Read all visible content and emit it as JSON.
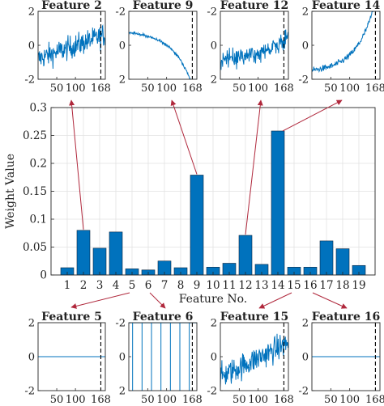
{
  "chart_data": [
    {
      "type": "bar",
      "xlabel": "Feature No.",
      "ylabel": "Weight Value",
      "categories": [
        "1",
        "2",
        "3",
        "4",
        "5",
        "6",
        "7",
        "8",
        "9",
        "10",
        "11",
        "12",
        "13",
        "14",
        "15",
        "16",
        "17",
        "18",
        "19"
      ],
      "values": [
        0.013,
        0.08,
        0.048,
        0.077,
        0.011,
        0.009,
        0.025,
        0.013,
        0.179,
        0.014,
        0.021,
        0.071,
        0.019,
        0.258,
        0.014,
        0.014,
        0.061,
        0.047,
        0.017
      ],
      "ylim": [
        0,
        0.3
      ],
      "yticks": [
        "0",
        "0.05",
        "0.1",
        "0.15",
        "0.2",
        "0.25",
        "0.3"
      ],
      "grid": true,
      "bar_color": "#0072BD"
    },
    {
      "type": "line",
      "title": "Feature 2",
      "ylim": [
        -2,
        2
      ],
      "yticks": [
        "2",
        "0",
        "-2"
      ],
      "xticks": [
        "50",
        "100",
        "168"
      ],
      "marker_x": 168,
      "pattern": "noisy_rise_weak"
    },
    {
      "type": "line",
      "title": "Feature 9",
      "ylim": [
        -2,
        2
      ],
      "yticks": [
        "-2",
        "0",
        "2"
      ],
      "xticks": [
        "50",
        "100",
        "168"
      ],
      "marker_x": 168,
      "pattern": "smooth_exp_rise"
    },
    {
      "type": "line",
      "title": "Feature 12",
      "ylim": [
        -2,
        2
      ],
      "yticks": [
        "-2",
        "0",
        "2"
      ],
      "xticks": [
        "50",
        "100",
        "168"
      ],
      "marker_x": 168,
      "pattern": "noisy_fall"
    },
    {
      "type": "line",
      "title": "Feature 14",
      "ylim": [
        -2,
        2
      ],
      "yticks": [
        "2",
        "0",
        "-2"
      ],
      "xticks": [
        "50",
        "100",
        "168"
      ],
      "marker_x": 168,
      "pattern": "noisy_exp_rise"
    },
    {
      "type": "line",
      "title": "Feature 5",
      "ylim": [
        -2,
        2
      ],
      "yticks": [
        "2",
        "0",
        "-2"
      ],
      "xticks": [
        "50",
        "100",
        "168"
      ],
      "marker_x": 168,
      "pattern": "flat"
    },
    {
      "type": "line",
      "title": "Feature 6",
      "ylim": [
        -2,
        2
      ],
      "yticks": [
        "-2",
        "0",
        "2"
      ],
      "xticks": [
        "50",
        "100",
        "168"
      ],
      "marker_x": 168,
      "pattern": "spikes"
    },
    {
      "type": "line",
      "title": "Feature 15",
      "ylim": [
        -2,
        2
      ],
      "yticks": [
        "2",
        "0",
        "-2"
      ],
      "xticks": [
        "50",
        "100",
        "168"
      ],
      "marker_x": 168,
      "pattern": "noisy_rise_strong"
    },
    {
      "type": "line",
      "title": "Feature 16",
      "ylim": [
        -2,
        2
      ],
      "yticks": [
        "2",
        "0",
        "-2"
      ],
      "xticks": [
        "50",
        "100",
        "168"
      ],
      "marker_x": 168,
      "pattern": "flat"
    }
  ],
  "colors": {
    "series": "#0072BD",
    "arrow": "#B0283C",
    "grid": "#e2e2e2",
    "axis": "#262626"
  }
}
